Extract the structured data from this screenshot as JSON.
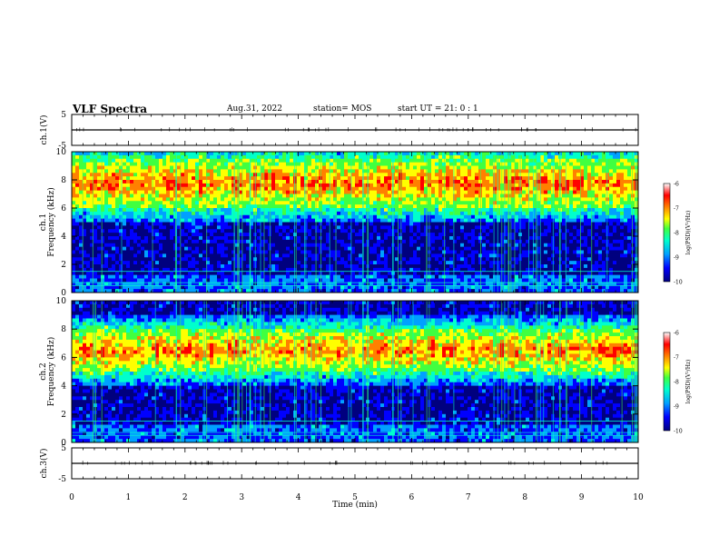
{
  "header": {
    "title": "VLF Spectra",
    "date": "Aug.31, 2022",
    "station": "station= MOS",
    "start": "start  UT =   21: 0  : 1"
  },
  "chart_data": [
    {
      "type": "line",
      "name": "waveform-ch1",
      "ylabel": "ch.1(V)",
      "ylim": [
        -5,
        5
      ],
      "yticks": [
        "5",
        "-5"
      ],
      "xlim": [
        0,
        10
      ],
      "baseline_value": 0
    },
    {
      "type": "heatmap",
      "name": "spectrogram-ch1",
      "ylabel": "ch.1 Frequency (kHz)",
      "ylim": [
        0,
        10
      ],
      "yticks": [
        "0",
        "2",
        "4",
        "6",
        "8",
        "10"
      ],
      "xlim": [
        0,
        10
      ],
      "emission_band_khz": [
        6,
        9.5
      ],
      "colorbar": {
        "label": "log(PSD)(V²/Hz)",
        "ticks": [
          "-6",
          "-7",
          "-8",
          "-9",
          "-10"
        ],
        "range": [
          -10,
          -6
        ]
      }
    },
    {
      "type": "heatmap",
      "name": "spectrogram-ch2",
      "ylabel": "ch.2 Frequency (kHz)",
      "ylim": [
        0,
        10
      ],
      "yticks": [
        "0",
        "2",
        "4",
        "6",
        "8",
        "10"
      ],
      "xlim": [
        0,
        10
      ],
      "emission_band_khz": [
        5,
        8
      ],
      "colorbar": {
        "label": "log(PSD)(V²/Hz)",
        "ticks": [
          "-6",
          "-7",
          "-8",
          "-9",
          "-10"
        ],
        "range": [
          -10,
          -6
        ]
      }
    },
    {
      "type": "line",
      "name": "waveform-ch3",
      "ylabel": "ch.3(V)",
      "ylim": [
        -5,
        5
      ],
      "yticks": [
        "5",
        "-5"
      ],
      "xlim": [
        0,
        10
      ],
      "baseline_value": 0
    }
  ],
  "x_axis": {
    "label": "Time  (min)",
    "ticks": [
      "0",
      "1",
      "2",
      "3",
      "4",
      "5",
      "6",
      "7",
      "8",
      "9",
      "10"
    ]
  },
  "colors": {
    "colormap": [
      "#00007f",
      "#0000ff",
      "#00a0ff",
      "#00ffcc",
      "#40ff40",
      "#ffff00",
      "#ff8000",
      "#ff0000",
      "#ffffff"
    ],
    "background": "#ffffff",
    "axis": "#000000"
  }
}
